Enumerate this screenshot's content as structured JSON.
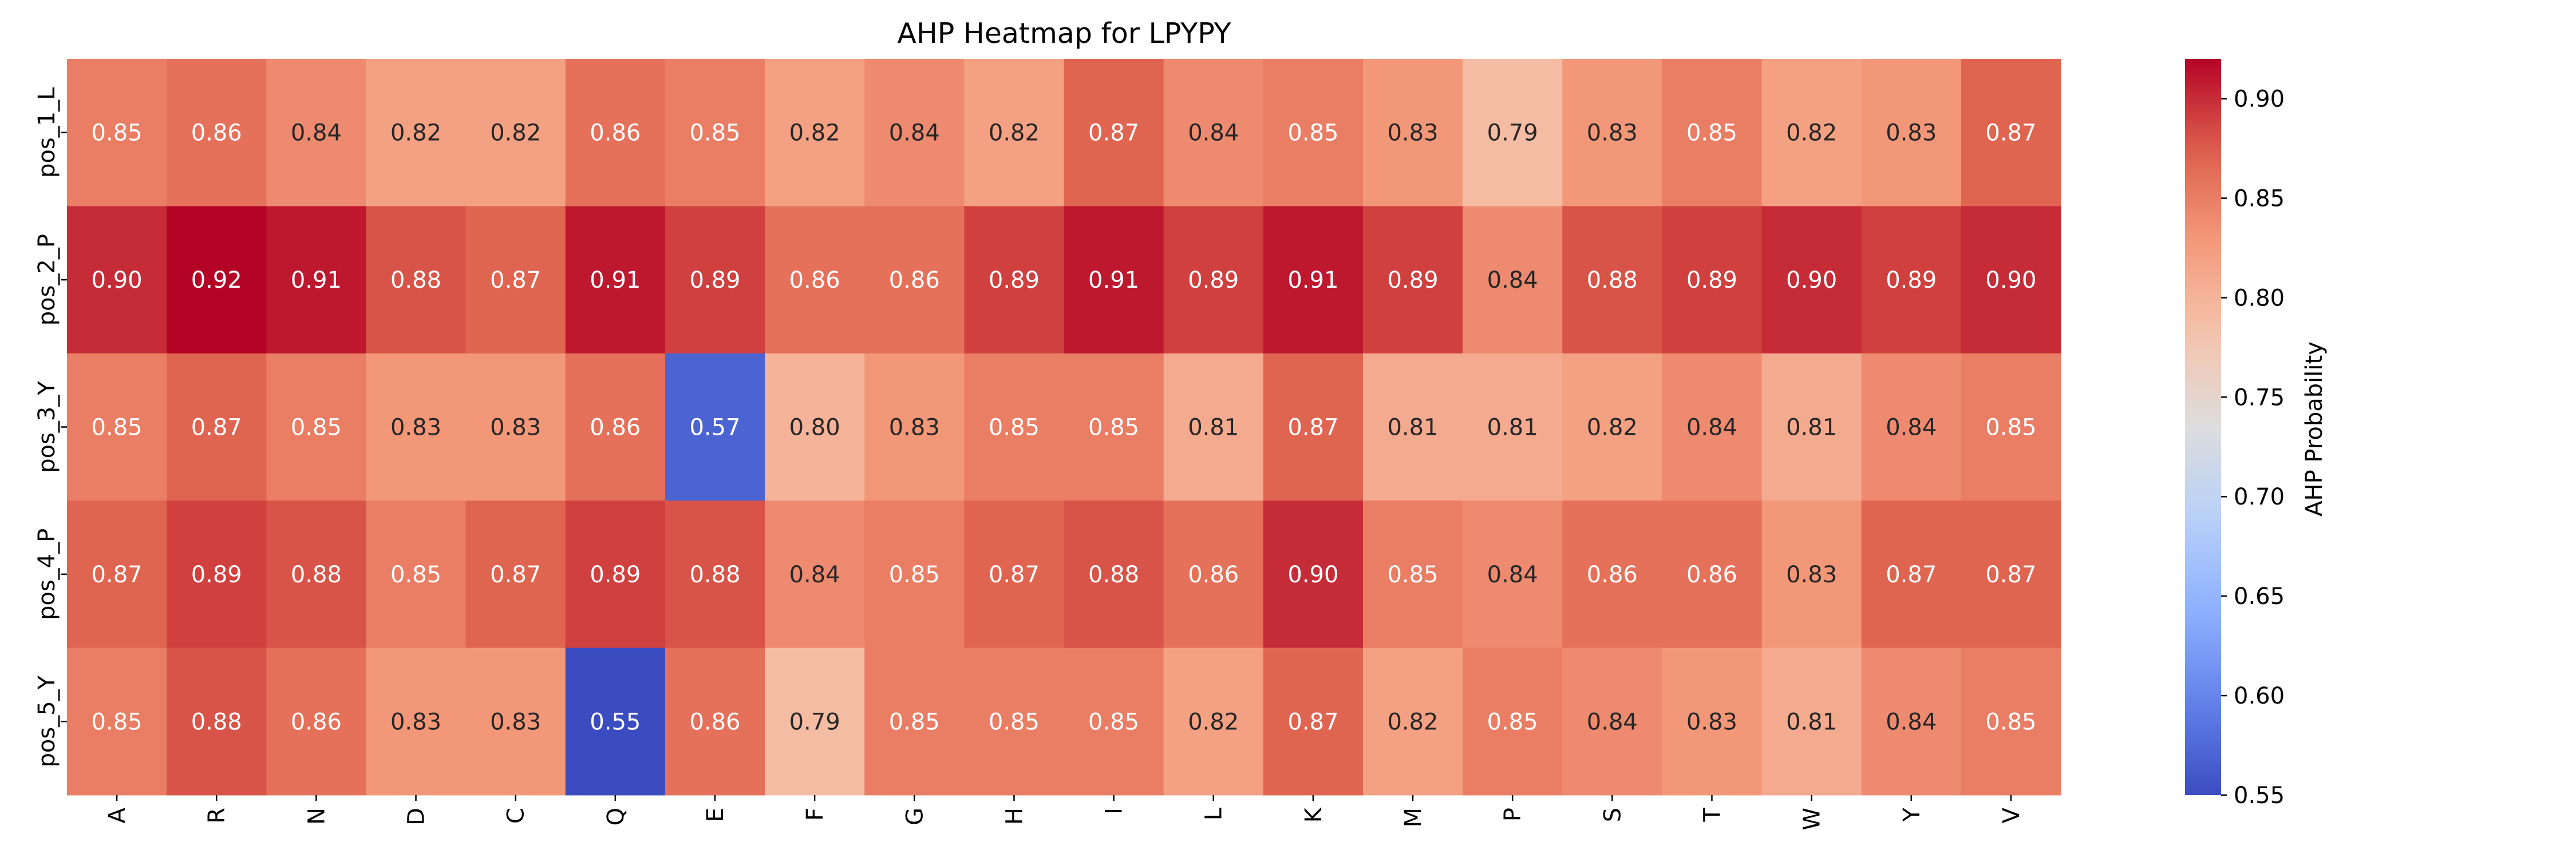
{
  "chart_data": {
    "type": "heatmap",
    "title": "AHP Heatmap for LPYPY",
    "x_categories": [
      "A",
      "R",
      "N",
      "D",
      "C",
      "Q",
      "E",
      "F",
      "G",
      "H",
      "I",
      "L",
      "K",
      "M",
      "P",
      "S",
      "T",
      "W",
      "Y",
      "V"
    ],
    "y_categories": [
      "pos_1_L",
      "pos_2_P",
      "pos_3_Y",
      "pos_4_P",
      "pos_5_Y"
    ],
    "values": [
      [
        0.85,
        0.86,
        0.84,
        0.82,
        0.82,
        0.86,
        0.85,
        0.82,
        0.84,
        0.82,
        0.87,
        0.84,
        0.85,
        0.83,
        0.79,
        0.83,
        0.85,
        0.82,
        0.83,
        0.87
      ],
      [
        0.9,
        0.92,
        0.91,
        0.88,
        0.87,
        0.91,
        0.89,
        0.86,
        0.86,
        0.89,
        0.91,
        0.89,
        0.91,
        0.89,
        0.84,
        0.88,
        0.89,
        0.9,
        0.89,
        0.9
      ],
      [
        0.85,
        0.87,
        0.85,
        0.83,
        0.83,
        0.86,
        0.57,
        0.8,
        0.83,
        0.85,
        0.85,
        0.81,
        0.87,
        0.81,
        0.81,
        0.82,
        0.84,
        0.81,
        0.84,
        0.85
      ],
      [
        0.87,
        0.89,
        0.88,
        0.85,
        0.87,
        0.89,
        0.88,
        0.84,
        0.85,
        0.87,
        0.88,
        0.86,
        0.9,
        0.85,
        0.84,
        0.86,
        0.86,
        0.83,
        0.87,
        0.87
      ],
      [
        0.85,
        0.88,
        0.86,
        0.83,
        0.83,
        0.55,
        0.86,
        0.79,
        0.85,
        0.85,
        0.85,
        0.82,
        0.87,
        0.82,
        0.85,
        0.84,
        0.83,
        0.81,
        0.84,
        0.85
      ]
    ],
    "colormap": "coolwarm",
    "vmin": 0.55,
    "vmax": 0.92,
    "colorbar": {
      "label": "AHP Probability",
      "ticks": [
        "0.55",
        "0.60",
        "0.65",
        "0.70",
        "0.75",
        "0.80",
        "0.85",
        "0.90"
      ]
    },
    "annotations": "cell values shown to 2 decimals",
    "grid": false
  }
}
